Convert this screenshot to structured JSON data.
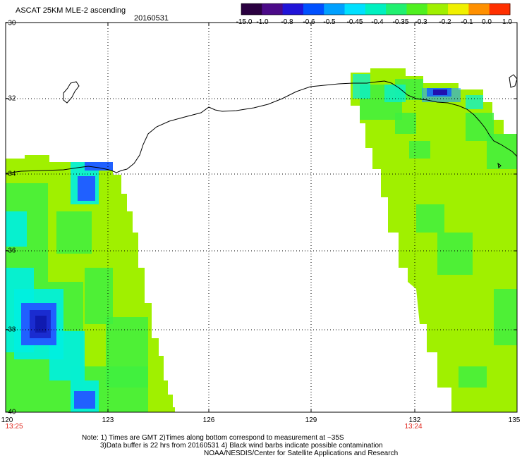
{
  "header": {
    "title": "ASCAT 25KM MLE-2 ascending",
    "date": "20160531"
  },
  "colorbar": {
    "labels": [
      "-15.0",
      "-1.0",
      "-0.8",
      "-0.6",
      "-0.5",
      "-0.45",
      "-0.4",
      "-0.35",
      "-0.3",
      "-0.2",
      "-0.1",
      "0.0",
      "1.0"
    ],
    "colors": [
      "#2a0040",
      "#4b0a88",
      "#2014d8",
      "#0050ff",
      "#00a0ff",
      "#00e0ff",
      "#00f0c0",
      "#20f070",
      "#50f020",
      "#a0f000",
      "#f0f000",
      "#ff9000",
      "#ff3000"
    ]
  },
  "map": {
    "lat_labels": [
      "-30",
      "-32",
      "-34",
      "-36",
      "-38",
      "-40"
    ],
    "lon_labels": [
      "120",
      "123",
      "126",
      "129",
      "132",
      "135"
    ],
    "time_labels": [
      "13:25",
      "13:24"
    ],
    "lat_range": [
      -40,
      -30
    ],
    "lon_range": [
      120,
      135
    ]
  },
  "notes": {
    "line1": "Note: 1) Times are GMT 2)Times along bottom correspond to measurement at ~35S",
    "line2": "3)Data buffer is 22 hrs from 20160531 4) Black wind barbs indicate possible contamination",
    "line3": "NOAA/NESDIS/Center for Satellite Applications and Research"
  },
  "style": {
    "accent_time_color": "#e0291f",
    "field_color_main": "#a0f000",
    "field_color_green": "#40f040",
    "field_color_cyan": "#00f0e0",
    "field_color_blue": "#2060ff"
  }
}
